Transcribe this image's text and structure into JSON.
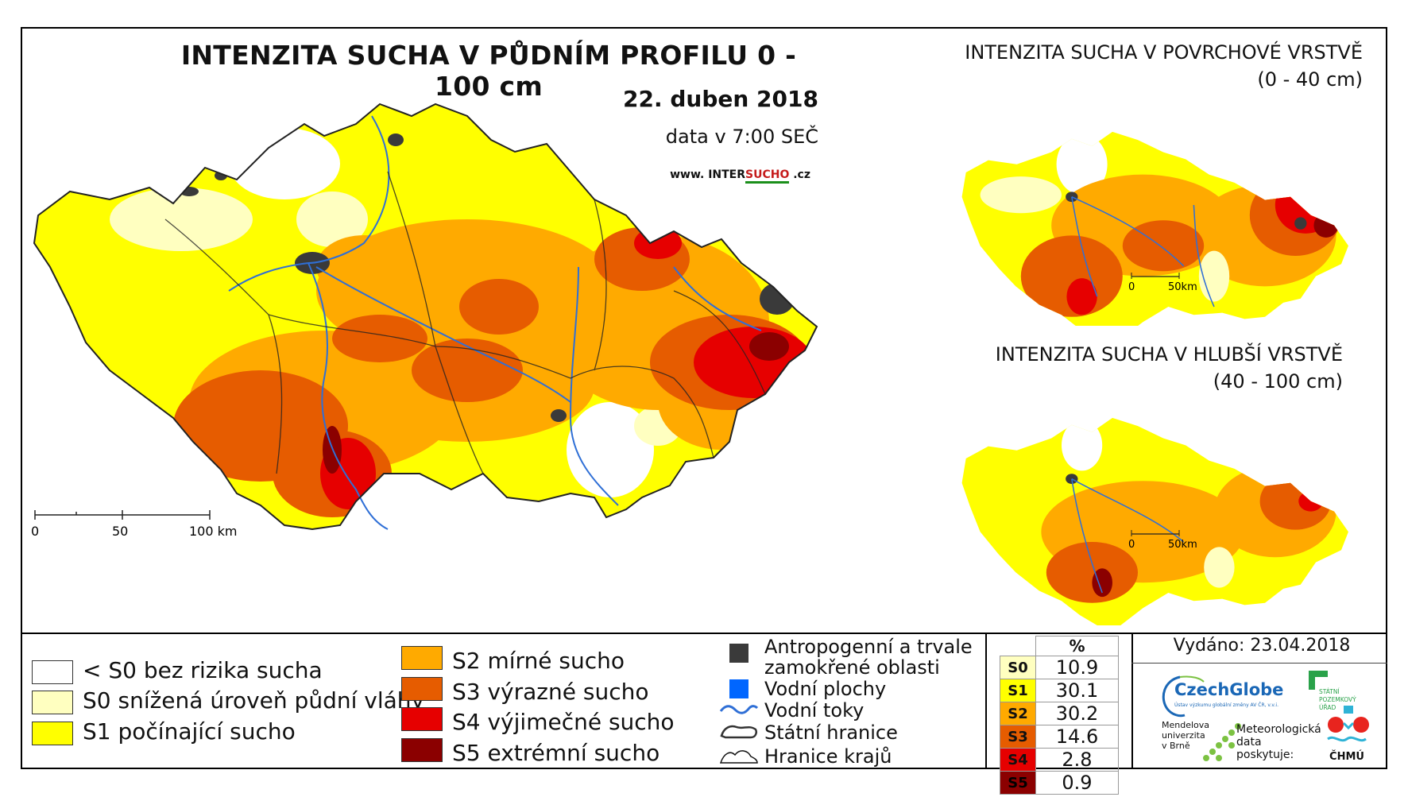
{
  "main": {
    "title": "INTENZITA SUCHA V PŮDNÍM PROFILU 0 - 100 cm",
    "date": "22. duben 2018",
    "data_time": "data v 7:00 SEČ",
    "website_prefix": "www. INTER",
    "website_mid": "SUCHO",
    "website_suffix": " .cz",
    "scale": {
      "t0": "0",
      "t50": "50",
      "t100": "100 km"
    }
  },
  "inset_top": {
    "title": "INTENZITA SUCHA V POVRCHOVÉ VRSTVĚ",
    "subtitle": "(0 - 40 cm)",
    "scale": {
      "t0": "0",
      "t50": "50km"
    }
  },
  "inset_bottom": {
    "title": "INTENZITA SUCHA V HLUBŠÍ VRSTVĚ",
    "subtitle": "(40 - 100 cm)",
    "scale": {
      "t0": "0",
      "t50": "50km"
    }
  },
  "legend_classes": [
    {
      "label": "< S0 bez rizika sucha",
      "color": "#ffffff"
    },
    {
      "label": "S0 snížená úroveň půdní vláhy",
      "color": "#ffffc0"
    },
    {
      "label": "S1 počínající sucho",
      "color": "#ffff00"
    },
    {
      "label": "S2 mírné sucho",
      "color": "#ffaa00"
    },
    {
      "label": "S3 výrazné sucho",
      "color": "#e65c00"
    },
    {
      "label": "S4 výjimečné sucho",
      "color": "#e60000"
    },
    {
      "label": "S5 extrémní sucho",
      "color": "#8b0000"
    }
  ],
  "legend_features": {
    "anthropogenic": "Antropogenní a trvale zamokřené oblasti",
    "anthropogenic_l1": "Antropogenní a trvale",
    "anthropogenic_l2": "zamokřené oblasti",
    "water_bodies": "Vodní plochy",
    "rivers": "Vodní toky",
    "state_border": "Státní hranice",
    "region_border": "Hranice krajů",
    "colors": {
      "anthropogenic": "#3a3a3a",
      "water": "#0066ff",
      "river": "#2f6fd6"
    }
  },
  "percent_table": {
    "header": "%",
    "rows": [
      {
        "code": "S0",
        "value": "10.9",
        "color": "#ffffc0"
      },
      {
        "code": "S1",
        "value": "30.1",
        "color": "#ffff00"
      },
      {
        "code": "S2",
        "value": "30.2",
        "color": "#ffaa00"
      },
      {
        "code": "S3",
        "value": "14.6",
        "color": "#e65c00"
      },
      {
        "code": "S4",
        "value": "2.8",
        "color": "#e60000"
      },
      {
        "code": "S5",
        "value": "0.9",
        "color": "#8b0000"
      }
    ]
  },
  "credits": {
    "issued": "Vydáno: 23.04.2018",
    "czechglobe": "CzechGlobe",
    "czechglobe_sub": "Ústav výzkumu globální změny AV ČR, v.v.i.",
    "spu_l1": "STÁTNÍ",
    "spu_l2": "POZEMKOVÝ",
    "spu_l3": "ÚŘAD",
    "mendelu_l1": "Mendelova",
    "mendelu_l2": "univerzita",
    "mendelu_l3": "v Brně",
    "meteo_l1": "Meteorologická",
    "meteo_l2": "data",
    "meteo_l3": "poskytuje:",
    "chmu": "ČHMÚ"
  }
}
